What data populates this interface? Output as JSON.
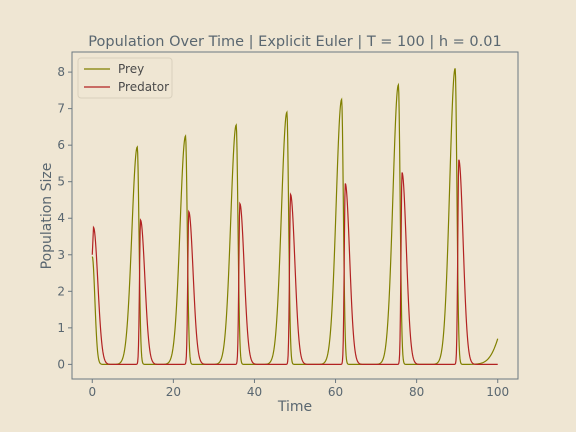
{
  "chart_data": {
    "type": "line",
    "title": "Population Over Time | Explicit Euler | T = 100 | h = 0.01",
    "xlabel": "Time",
    "ylabel": "Population Size",
    "xlim": [
      -5,
      105
    ],
    "ylim": [
      -0.4,
      8.55
    ],
    "xticks": [
      0,
      20,
      40,
      60,
      80,
      100
    ],
    "yticks": [
      0,
      1,
      2,
      3,
      4,
      5,
      6,
      7,
      8
    ],
    "grid": false,
    "legend": "upper-left",
    "series": [
      {
        "name": "Prey",
        "color": "#808000",
        "peaks": [
          [
            11.1,
            5.95
          ],
          [
            23.0,
            6.25
          ],
          [
            35.5,
            6.55
          ],
          [
            48.0,
            6.9
          ],
          [
            61.5,
            7.25
          ],
          [
            75.5,
            7.65
          ],
          [
            89.5,
            8.1
          ]
        ],
        "end_value": 0.52
      },
      {
        "name": "Predator",
        "color": "#b22222",
        "start_value": 3.0,
        "peaks": [
          [
            0.3,
            3.75
          ],
          [
            11.9,
            3.95
          ],
          [
            23.8,
            4.18
          ],
          [
            36.4,
            4.4
          ],
          [
            48.9,
            4.65
          ],
          [
            62.4,
            4.95
          ],
          [
            76.4,
            5.25
          ],
          [
            90.4,
            5.6
          ]
        ],
        "end_value": 0.02
      }
    ]
  }
}
